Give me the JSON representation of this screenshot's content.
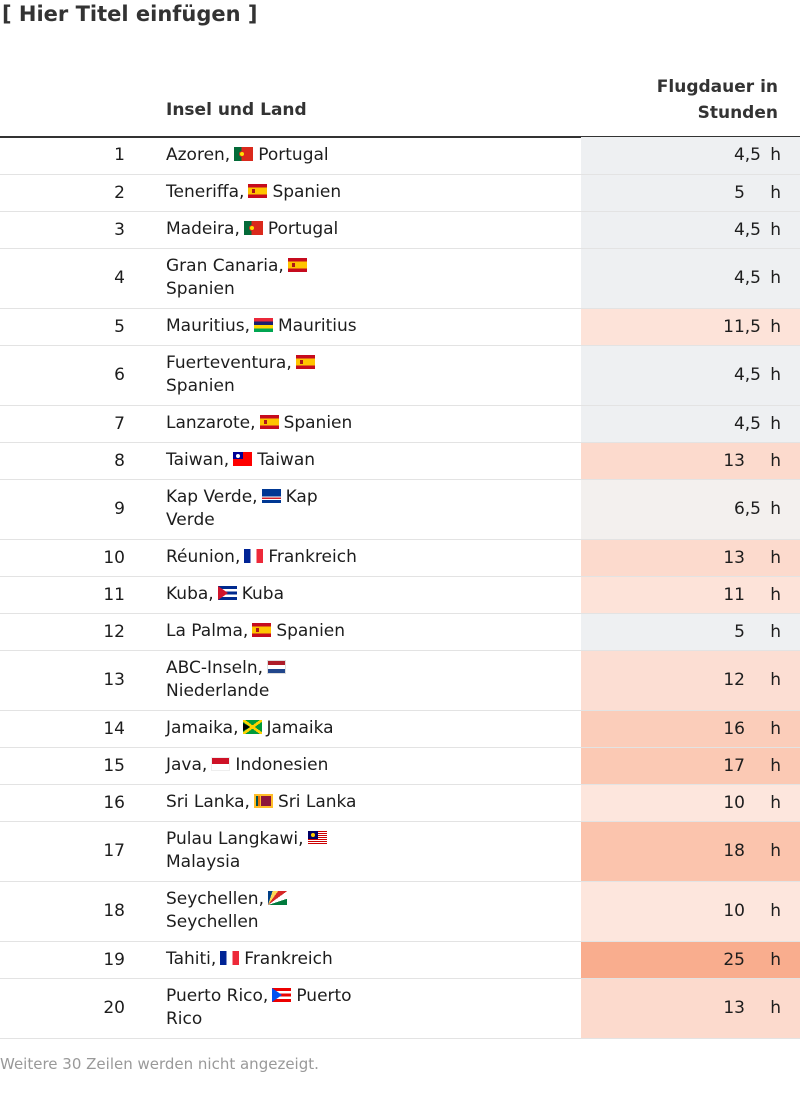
{
  "title": "[ Hier Titel einfügen ]",
  "columns": {
    "island": "Insel und Land",
    "duration": "Flugdauer in Stunden"
  },
  "rows": [
    {
      "rank": "1",
      "island": "Azoren,",
      "flag": "pt",
      "country": "Portugal",
      "value": "4,5",
      "unit": "h",
      "color": "#eef0f2",
      "wrap": false
    },
    {
      "rank": "2",
      "island": "Teneriffa,",
      "flag": "es",
      "country": "Spanien",
      "value": "5",
      "unit": "h",
      "color": "#eef0f2",
      "wrap": false
    },
    {
      "rank": "3",
      "island": "Madeira,",
      "flag": "pt",
      "country": "Portugal",
      "value": "4,5",
      "unit": "h",
      "color": "#eef0f2",
      "wrap": false
    },
    {
      "rank": "4",
      "island": "Gran Canaria,",
      "flag": "es",
      "country": "Spanien",
      "value": "4,5",
      "unit": "h",
      "color": "#eef0f2",
      "wrap": true
    },
    {
      "rank": "5",
      "island": "Mauritius,",
      "flag": "mu",
      "country": "Mauritius",
      "value": "11,5",
      "unit": "h",
      "color": "#fde3d9",
      "wrap": false
    },
    {
      "rank": "6",
      "island": "Fuerteventura,",
      "flag": "es",
      "country": "Spanien",
      "value": "4,5",
      "unit": "h",
      "color": "#eef0f2",
      "wrap": true
    },
    {
      "rank": "7",
      "island": "Lanzarote,",
      "flag": "es",
      "country": "Spanien",
      "value": "4,5",
      "unit": "h",
      "color": "#eef0f2",
      "wrap": false
    },
    {
      "rank": "8",
      "island": "Taiwan,",
      "flag": "tw",
      "country": "Taiwan",
      "value": "13",
      "unit": "h",
      "color": "#fcdacd",
      "wrap": false
    },
    {
      "rank": "9",
      "island": "Kap Verde,",
      "flag": "cv",
      "country": "Kap Verde",
      "value": "6,5",
      "unit": "h",
      "color": "#f3f0ee",
      "wrap": true
    },
    {
      "rank": "10",
      "island": "Réunion,",
      "flag": "fr",
      "country": "Frankreich",
      "value": "13",
      "unit": "h",
      "color": "#fcdacd",
      "wrap": false
    },
    {
      "rank": "11",
      "island": "Kuba,",
      "flag": "cu",
      "country": "Kuba",
      "value": "11",
      "unit": "h",
      "color": "#fde3d9",
      "wrap": false
    },
    {
      "rank": "12",
      "island": "La Palma,",
      "flag": "es",
      "country": "Spanien",
      "value": "5",
      "unit": "h",
      "color": "#eef0f2",
      "wrap": false
    },
    {
      "rank": "13",
      "island": "ABC-Inseln,",
      "flag": "nl",
      "country": "Niederlande",
      "value": "12",
      "unit": "h",
      "color": "#fcded3",
      "wrap": true
    },
    {
      "rank": "14",
      "island": "Jamaika,",
      "flag": "jm",
      "country": "Jamaika",
      "value": "16",
      "unit": "h",
      "color": "#fbcdba",
      "wrap": false
    },
    {
      "rank": "15",
      "island": "Java,",
      "flag": "id",
      "country": "Indonesien",
      "value": "17",
      "unit": "h",
      "color": "#fbc9b4",
      "wrap": false
    },
    {
      "rank": "16",
      "island": "Sri Lanka,",
      "flag": "lk",
      "country": "Sri Lanka",
      "value": "10",
      "unit": "h",
      "color": "#fde6dd",
      "wrap": false
    },
    {
      "rank": "17",
      "island": "Pulau Langkawi,",
      "flag": "my",
      "country": "Malaysia",
      "value": "18",
      "unit": "h",
      "color": "#fbc4ad",
      "wrap": true
    },
    {
      "rank": "18",
      "island": "Seychellen,",
      "flag": "sc",
      "country": "Seychellen",
      "value": "10",
      "unit": "h",
      "color": "#fde6dd",
      "wrap": true
    },
    {
      "rank": "19",
      "island": "Tahiti,",
      "flag": "fr",
      "country": "Frankreich",
      "value": "25",
      "unit": "h",
      "color": "#f9ad8e",
      "wrap": false
    },
    {
      "rank": "20",
      "island": "Puerto Rico,",
      "flag": "pr",
      "country": "Puerto Rico",
      "value": "13",
      "unit": "h",
      "color": "#fcdacd",
      "wrap": true
    }
  ],
  "footer": "Weitere 30 Zeilen werden nicht angezeigt."
}
